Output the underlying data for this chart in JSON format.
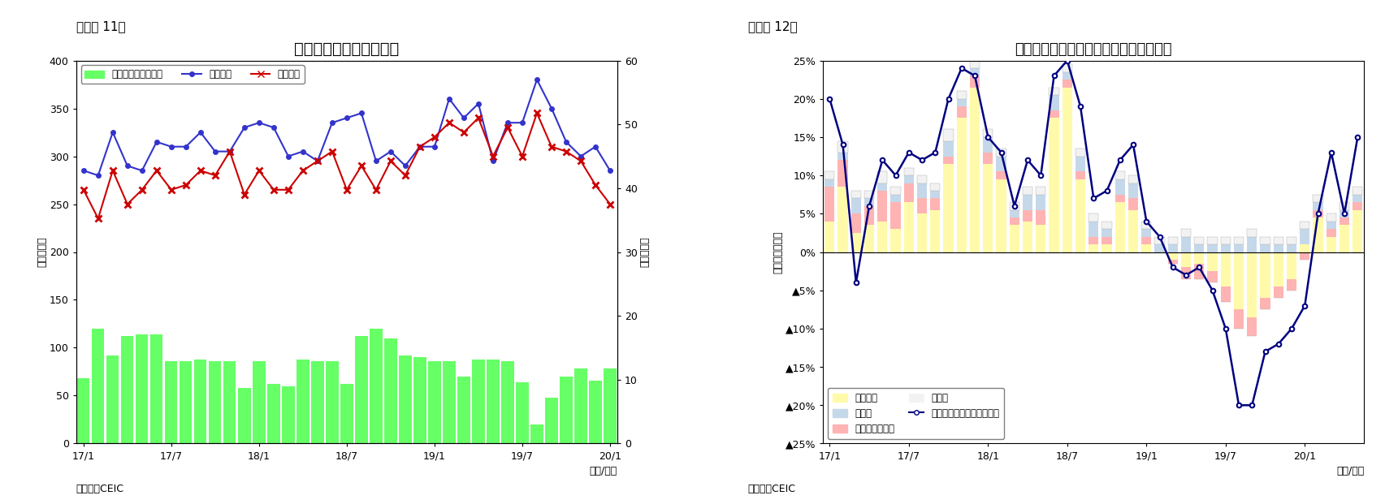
{
  "chart1": {
    "title": "シンガポール　貳易収支",
    "ylabel_left": "（億ドル）",
    "ylabel_right": "（億ドル）",
    "xlabel": "（年/月）",
    "source": "（資料）CEIC",
    "fignum": "（図表 11）",
    "xtick_labels": [
      "17/1",
      "17/7",
      "18/1",
      "18/7",
      "19/1",
      "19/7",
      "20/1"
    ],
    "ylim_left": [
      0,
      400
    ],
    "ylim_right": [
      0,
      60
    ],
    "yticks_left": [
      0,
      50,
      100,
      150,
      200,
      250,
      300,
      350,
      400
    ],
    "yticks_right": [
      0,
      10,
      20,
      30,
      40,
      50,
      60
    ],
    "bar_color": "#66FF66",
    "line1_color": "#3333CC",
    "line2_color": "#CC0000",
    "trade_balance_right": [
      10.2,
      18.0,
      13.8,
      16.8,
      17.1,
      17.1,
      12.9,
      12.9,
      13.2,
      12.9,
      12.9,
      8.7,
      12.9,
      9.3,
      9.0,
      13.2,
      12.9,
      12.9,
      9.3,
      16.8,
      18.0,
      16.5,
      13.8,
      13.5,
      12.9,
      12.9,
      10.5,
      13.2,
      13.2,
      12.9,
      9.6,
      3.0,
      7.2,
      10.5,
      11.7,
      9.9,
      11.7
    ],
    "exports": [
      285,
      280,
      325,
      290,
      285,
      315,
      310,
      310,
      325,
      305,
      305,
      330,
      335,
      330,
      300,
      305,
      295,
      335,
      340,
      345,
      295,
      305,
      290,
      310,
      310,
      360,
      340,
      355,
      295,
      335,
      335,
      380,
      350,
      315,
      300,
      310,
      285
    ],
    "imports": [
      265,
      235,
      285,
      250,
      265,
      285,
      265,
      270,
      285,
      280,
      305,
      260,
      285,
      265,
      265,
      285,
      295,
      305,
      265,
      290,
      265,
      295,
      280,
      310,
      320,
      335,
      325,
      340,
      300,
      330,
      300,
      345,
      310,
      305,
      295,
      270,
      250
    ],
    "legend_bar": "貳易収支（右目盛）",
    "legend_line1": "総輸出額",
    "legend_line2": "総輸入額"
  },
  "chart2": {
    "title": "シンガポール　輸出の伸び率（品目別）",
    "ylabel": "（前年同期比）",
    "xlabel": "（年/月）",
    "source": "（資料）CEIC",
    "fignum": "（図表 12）",
    "xtick_labels": [
      "17/1",
      "17/7",
      "18/1",
      "18/7",
      "19/1",
      "19/7",
      "20/1"
    ],
    "ylim": [
      -0.25,
      0.25
    ],
    "yticks": [
      -0.25,
      -0.2,
      -0.15,
      -0.1,
      -0.05,
      0.0,
      0.05,
      0.1,
      0.15,
      0.2,
      0.25
    ],
    "color_electronics": "#FFFAAA",
    "color_chemical": "#FFB3B3",
    "color_pharma": "#C5D8EA",
    "color_other": "#F2F2F2",
    "line_color": "#000080",
    "electronics": [
      0.04,
      0.085,
      0.025,
      0.035,
      0.04,
      0.03,
      0.065,
      0.05,
      0.055,
      0.115,
      0.175,
      0.215,
      0.115,
      0.095,
      0.035,
      0.04,
      0.035,
      0.175,
      0.215,
      0.095,
      0.01,
      0.01,
      0.065,
      0.055,
      0.01,
      0.0,
      -0.01,
      -0.02,
      -0.015,
      -0.025,
      -0.045,
      -0.075,
      -0.085,
      -0.06,
      -0.045,
      -0.035,
      0.01,
      0.045,
      0.02,
      0.035,
      0.055
    ],
    "chemical": [
      0.045,
      0.035,
      0.025,
      0.025,
      0.04,
      0.035,
      0.025,
      0.02,
      0.015,
      0.01,
      0.015,
      0.015,
      0.015,
      0.01,
      0.01,
      0.015,
      0.02,
      0.01,
      0.01,
      0.01,
      0.01,
      0.01,
      0.01,
      0.015,
      0.01,
      0.0,
      -0.005,
      -0.015,
      -0.02,
      -0.015,
      -0.02,
      -0.025,
      -0.025,
      -0.015,
      -0.015,
      -0.015,
      -0.01,
      0.01,
      0.01,
      0.01,
      0.01
    ],
    "pharma": [
      0.01,
      0.01,
      0.02,
      0.01,
      0.01,
      0.01,
      0.01,
      0.02,
      0.01,
      0.02,
      0.01,
      0.01,
      0.02,
      0.02,
      0.01,
      0.02,
      0.02,
      0.02,
      0.01,
      0.02,
      0.02,
      0.01,
      0.02,
      0.02,
      0.01,
      0.01,
      0.01,
      0.02,
      0.01,
      0.01,
      0.01,
      0.01,
      0.02,
      0.01,
      0.01,
      0.01,
      0.02,
      0.01,
      0.01,
      0.01,
      0.01
    ],
    "other": [
      0.01,
      0.015,
      0.01,
      0.01,
      0.015,
      0.01,
      0.01,
      0.01,
      0.01,
      0.015,
      0.01,
      0.01,
      0.01,
      0.01,
      0.01,
      0.01,
      0.01,
      0.01,
      0.01,
      0.01,
      0.01,
      0.01,
      0.01,
      0.01,
      0.01,
      0.01,
      0.01,
      0.01,
      0.01,
      0.01,
      0.01,
      0.01,
      0.01,
      0.01,
      0.01,
      0.01,
      0.01,
      0.01,
      0.01,
      0.01,
      0.01
    ],
    "total_line": [
      0.2,
      0.14,
      -0.04,
      0.06,
      0.12,
      0.1,
      0.13,
      0.12,
      0.13,
      0.2,
      0.24,
      0.23,
      0.15,
      0.13,
      0.06,
      0.12,
      0.1,
      0.23,
      0.25,
      0.19,
      0.07,
      0.08,
      0.12,
      0.14,
      0.04,
      0.02,
      -0.02,
      -0.03,
      -0.02,
      -0.05,
      -0.1,
      -0.2,
      -0.2,
      -0.13,
      -0.12,
      -0.1,
      -0.07,
      0.05,
      0.13,
      0.05,
      0.15
    ],
    "legend_elec": "電子製品",
    "legend_chem": "その他化学製品",
    "legend_pharma": "医薬品",
    "legend_other": "その他",
    "legend_line": "非石油輸出（再輸出除く）"
  }
}
